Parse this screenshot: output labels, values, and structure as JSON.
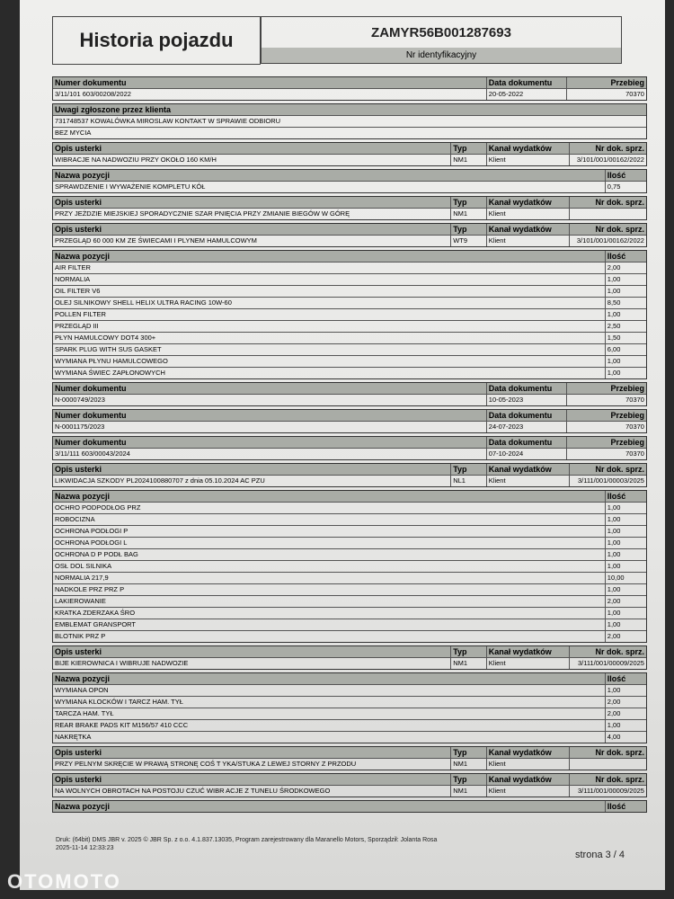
{
  "header": {
    "title": "Historia pojazdu",
    "vin": "ZAMYR56B001287693",
    "vin_label": "Nr identyfikacyjny"
  },
  "labels": {
    "doc_no": "Numer dokumentu",
    "doc_date": "Data dokumentu",
    "mileage": "Przebieg",
    "notes": "Uwagi zgłoszone przez klienta",
    "fault": "Opis usterki",
    "type": "Typ",
    "channel": "Kanał wydatków",
    "sales_doc": "Nr dok. sprz.",
    "item": "Nazwa pozycji",
    "qty": "Ilość"
  },
  "sections": [
    {
      "kind": "doc",
      "number": "3/11/101 603/00208/2022",
      "date": "20-05-2022",
      "mileage": "70370"
    },
    {
      "kind": "notes",
      "lines": [
        "731748537 KOWALÓWKA MIROSLAW KONTAKT W SPRAWIE ODBIORU",
        "BEZ MYCIA"
      ]
    },
    {
      "kind": "fault",
      "desc": "WIBRACJE NA NADWOZIU PRZY OKOŁO 160 KM/H",
      "type": "NM1",
      "channel": "Klient",
      "sales_doc": "3/101/001/00162/2022"
    },
    {
      "kind": "items",
      "rows": [
        {
          "name": "SPRAWDZENIE I WYWAŻENIE KOMPLETU KÓŁ",
          "qty": "0,75"
        }
      ]
    },
    {
      "kind": "fault",
      "desc": "PRZY JEŻDZIE MIEJSKIEJ SPORADYCZNIE SZAR PNIĘCIA PRZY ZMIANIE BIEGÓW W GÓRĘ",
      "type": "NM1",
      "channel": "Klient",
      "sales_doc": ""
    },
    {
      "kind": "fault",
      "desc": "PRZEGLĄD 60 000 KM ZE ŚWIECAMI I PLYNEM  HAMULCOWYM",
      "type": "WT9",
      "channel": "Klient",
      "sales_doc": "3/101/001/00162/2022"
    },
    {
      "kind": "items",
      "rows": [
        {
          "name": "AIR FILTER",
          "qty": "2,00"
        },
        {
          "name": "NORMALIA",
          "qty": "1,00"
        },
        {
          "name": "OIL FILTER V6",
          "qty": "1,00"
        },
        {
          "name": "OLEJ SILNIKOWY SHELL HELIX ULTRA RACING 10W-60",
          "qty": "8,50"
        },
        {
          "name": "POLLEN FILTER",
          "qty": "1,00"
        },
        {
          "name": "PRZEGLĄD III",
          "qty": "2,50"
        },
        {
          "name": "PŁYN HAMULCOWY DOT4 300+",
          "qty": "1,50"
        },
        {
          "name": "SPARK PLUG WITH SUS GASKET",
          "qty": "6,00"
        },
        {
          "name": "WYMIANA PŁYNU HAMULCOWEGO",
          "qty": "1,00"
        },
        {
          "name": "WYMIANA ŚWIEC ZAPŁONOWYCH",
          "qty": "1,00"
        }
      ]
    },
    {
      "kind": "doc",
      "number": "N-0000749/2023",
      "date": "10-05-2023",
      "mileage": "70370"
    },
    {
      "kind": "doc",
      "number": "N-0001175/2023",
      "date": "24-07-2023",
      "mileage": "70370"
    },
    {
      "kind": "doc",
      "number": "3/11/111 603/00043/2024",
      "date": "07-10-2024",
      "mileage": "70370"
    },
    {
      "kind": "fault",
      "desc": "LIKWIDACJA SZKODY PL2024100880707 z dnia  05.10.2024 AC PZU",
      "type": "NL1",
      "channel": "Klient",
      "sales_doc": "3/111/001/00003/2025"
    },
    {
      "kind": "items",
      "rows": [
        {
          "name": "OCHRO PODPODŁOG PRZ",
          "qty": "1,00"
        },
        {
          "name": "ROBOCIZNA",
          "qty": "1,00"
        },
        {
          "name": "OCHRONA PODŁOGI P",
          "qty": "1,00"
        },
        {
          "name": "OCHRONA PODŁOGI L",
          "qty": "1,00"
        },
        {
          "name": "OCHRONA D P PODŁ BAG",
          "qty": "1,00"
        },
        {
          "name": "OSŁ DOL SILNIKA",
          "qty": "1,00"
        },
        {
          "name": "NORMALIA 217,9",
          "qty": "10,00"
        },
        {
          "name": "NADKOLE PRZ PRZ P",
          "qty": "1,00"
        },
        {
          "name": "LAKIEROWANIE",
          "qty": "2,00"
        },
        {
          "name": "KRATKA ZDERZAKA ŚRO",
          "qty": "1,00"
        },
        {
          "name": "EMBLEMAT GRANSPORT",
          "qty": "1,00"
        },
        {
          "name": "BLOTNIK PRZ P",
          "qty": "2,00"
        }
      ]
    },
    {
      "kind": "fault",
      "desc": "BIJE KIEROWNICA I WIBRUJE NADWOZIE",
      "type": "NM1",
      "channel": "Klient",
      "sales_doc": "3/111/001/00009/2025"
    },
    {
      "kind": "items",
      "rows": [
        {
          "name": "WYMIANA OPON",
          "qty": "1,00"
        },
        {
          "name": "WYMIANA KLOCKÓW I TARCZ HAM. TYŁ",
          "qty": "2,00"
        },
        {
          "name": "TARCZA HAM. TYŁ",
          "qty": "2,00"
        },
        {
          "name": "REAR BRAKE PADS KIT M156/57 410 CCC",
          "qty": "1,00"
        },
        {
          "name": "NAKRĘTKA",
          "qty": "4,00"
        }
      ]
    },
    {
      "kind": "fault",
      "desc": "PRZY PELNYM SKRĘCIE W PRAWĄ STRONĘ COŚ T YKA/STUKA Z LEWEJ STORNY Z PRZODU",
      "type": "NM1",
      "channel": "Klient",
      "sales_doc": ""
    },
    {
      "kind": "fault",
      "desc": "NA WOLNYCH OBROTACH NA POSTOJU CZUĆ WIBR ACJE Z TUNELU ŚRODKOWEGO",
      "type": "NM1",
      "channel": "Klient",
      "sales_doc": "3/111/001/00009/2025"
    },
    {
      "kind": "items",
      "rows": []
    }
  ],
  "footer": {
    "print_info": "Druk: (64bit) DMS JBR v. 2025 © JBR Sp. z o.o. 4.1.837.13035, Program zarejestrowany dla Maranello Motors, Sporządził: Jolanta Rosa 2025-11-14 12:33:23",
    "page": "strona 3 / 4"
  },
  "watermark": "OTOMOTO"
}
